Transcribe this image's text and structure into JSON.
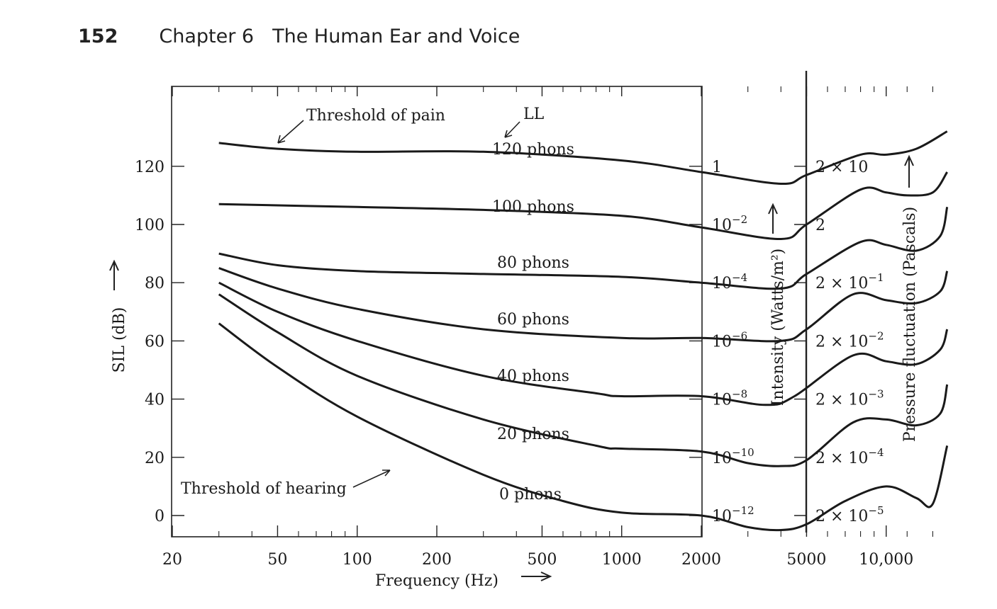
{
  "page": {
    "number": "152",
    "chapter": "Chapter 6",
    "title": "The Human Ear and Voice"
  },
  "chart_data": {
    "type": "line",
    "xlabel": "Frequency (Hz)",
    "ylabel": "SIL (dB)",
    "y2label": "Intensity (Watts/m²)",
    "y3label": "Pressure fluctuation (Pascals)",
    "xscale": "log",
    "xlim": [
      20,
      20000
    ],
    "ylim": [
      -8,
      135
    ],
    "x_ticks": [
      "20",
      "50",
      "100",
      "200",
      "500",
      "1000",
      "2000",
      "5000",
      "10,000"
    ],
    "x_tick_values": [
      20,
      50,
      100,
      200,
      500,
      1000,
      2000,
      5000,
      10000
    ],
    "y_ticks": [
      "0",
      "20",
      "40",
      "60",
      "80",
      "100",
      "120"
    ],
    "y_tick_values": [
      0,
      20,
      40,
      60,
      80,
      100,
      120
    ],
    "intensity_ticks": [
      {
        "db": 120,
        "base": "1",
        "exp": ""
      },
      {
        "db": 100,
        "base": "10",
        "exp": "−2"
      },
      {
        "db": 80,
        "base": "10",
        "exp": "−4"
      },
      {
        "db": 60,
        "base": "10",
        "exp": "−6"
      },
      {
        "db": 40,
        "base": "10",
        "exp": "−8"
      },
      {
        "db": 20,
        "base": "10",
        "exp": "−10"
      },
      {
        "db": 0,
        "base": "10",
        "exp": "−12"
      }
    ],
    "pressure_ticks": [
      {
        "db": 120,
        "base": "2 × 10",
        "exp": ""
      },
      {
        "db": 100,
        "base": "2",
        "exp": ""
      },
      {
        "db": 80,
        "base": "2 × 10",
        "exp": "−1"
      },
      {
        "db": 60,
        "base": "2 × 10",
        "exp": "−2"
      },
      {
        "db": 40,
        "base": "2 × 10",
        "exp": "−3"
      },
      {
        "db": 20,
        "base": "2 × 10",
        "exp": "−4"
      },
      {
        "db": 0,
        "base": "2 × 10",
        "exp": "−5"
      }
    ],
    "series": [
      {
        "name": "120 phons",
        "x": [
          30,
          50,
          100,
          300,
          1000,
          2000,
          4000,
          5000,
          8000,
          10000,
          13000,
          17000
        ],
        "y": [
          128,
          126,
          125,
          125,
          122,
          118,
          114,
          117,
          124,
          124,
          126,
          132
        ]
      },
      {
        "name": "100 phons",
        "x": [
          30,
          100,
          300,
          1000,
          2000,
          4000,
          5000,
          8000,
          10000,
          12000,
          15000,
          17000
        ],
        "y": [
          107,
          106,
          105,
          103,
          99,
          95,
          100,
          112,
          111,
          110,
          111,
          118
        ]
      },
      {
        "name": "80 phons",
        "x": [
          30,
          50,
          100,
          300,
          1000,
          2000,
          4000,
          5000,
          8000,
          10000,
          13000,
          16000,
          17000
        ],
        "y": [
          90,
          86,
          84,
          83,
          82,
          80,
          78,
          83,
          94,
          93,
          91,
          96,
          106
        ]
      },
      {
        "name": "60 phons",
        "x": [
          30,
          50,
          100,
          300,
          1000,
          2000,
          4000,
          5000,
          7500,
          10000,
          13000,
          16000,
          17000
        ],
        "y": [
          85,
          78,
          71,
          64,
          61,
          61,
          60,
          64,
          76,
          74,
          73,
          77,
          84
        ]
      },
      {
        "name": "40 phons",
        "x": [
          30,
          50,
          100,
          300,
          800,
          1000,
          2000,
          3500,
          4500,
          7500,
          10000,
          13000,
          16000,
          17000
        ],
        "y": [
          80,
          70,
          60,
          48,
          42,
          41,
          41,
          38,
          41,
          55,
          53,
          52,
          57,
          64
        ]
      },
      {
        "name": "20 phons",
        "x": [
          30,
          50,
          100,
          300,
          800,
          1000,
          2000,
          3000,
          4000,
          5000,
          7500,
          10000,
          13000,
          16000,
          17000
        ],
        "y": [
          76,
          63,
          48,
          33,
          24,
          23,
          22,
          18,
          17,
          19,
          32,
          33,
          31,
          35,
          45
        ]
      },
      {
        "name": "0 phons",
        "x": [
          30,
          50,
          100,
          300,
          600,
          1000,
          2000,
          3000,
          4000,
          5000,
          7000,
          10000,
          13000,
          15000,
          17000
        ],
        "y": [
          66,
          51,
          34,
          14,
          5,
          1,
          0,
          -4,
          -5,
          -3,
          5,
          10,
          6,
          4,
          24
        ]
      }
    ],
    "annotations": {
      "pain": "Threshold of pain",
      "hearing": "Threshold of hearing",
      "ll": "LL"
    }
  }
}
